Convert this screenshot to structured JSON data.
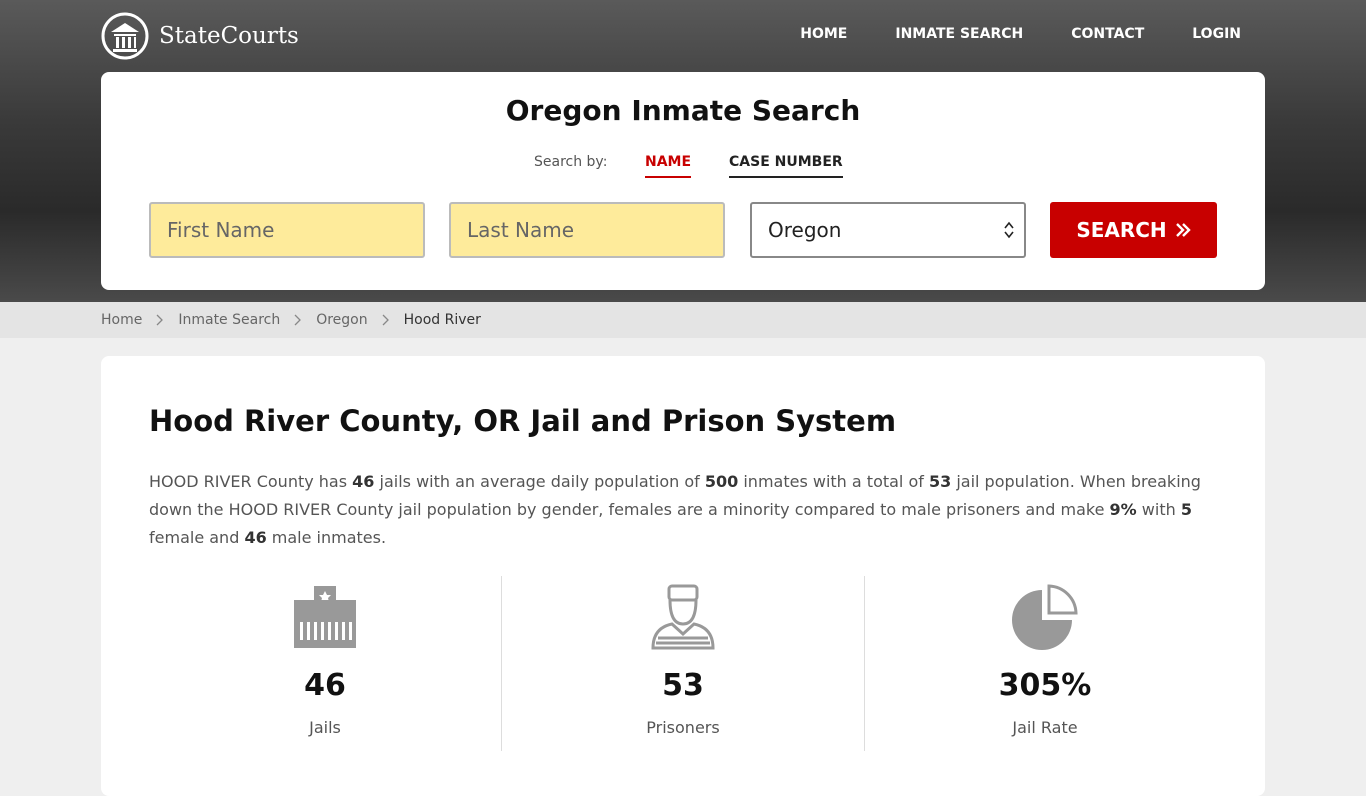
{
  "header": {
    "logo": "StateCourts",
    "nav": [
      "HOME",
      "INMATE SEARCH",
      "CONTACT",
      "LOGIN"
    ]
  },
  "search": {
    "title": "Oregon Inmate Search",
    "search_by": "Search by:",
    "tabs": [
      "NAME",
      "CASE NUMBER"
    ],
    "first_name": "First Name",
    "last_name": "Last Name",
    "state": "Oregon",
    "button": "SEARCH"
  },
  "breadcrumb": [
    "Home",
    "Inmate Search",
    "Oregon",
    "Hood River"
  ],
  "content": {
    "title": "Hood River County, OR Jail and Prison System",
    "paragraph": [
      "HOOD RIVER County has ",
      "46",
      " jails with an average daily population of ",
      "500",
      " inmates with a total of ",
      "53",
      " jail population. When breaking down the HOOD RIVER County jail population by gender, females are a minority compared to male prisoners and make ",
      "9%",
      " with ",
      "5",
      " female and ",
      "46",
      " male inmates."
    ],
    "stats": [
      {
        "value": "46",
        "label": "Jails"
      },
      {
        "value": "53",
        "label": "Prisoners"
      },
      {
        "value": "305%",
        "label": "Jail Rate"
      }
    ]
  }
}
